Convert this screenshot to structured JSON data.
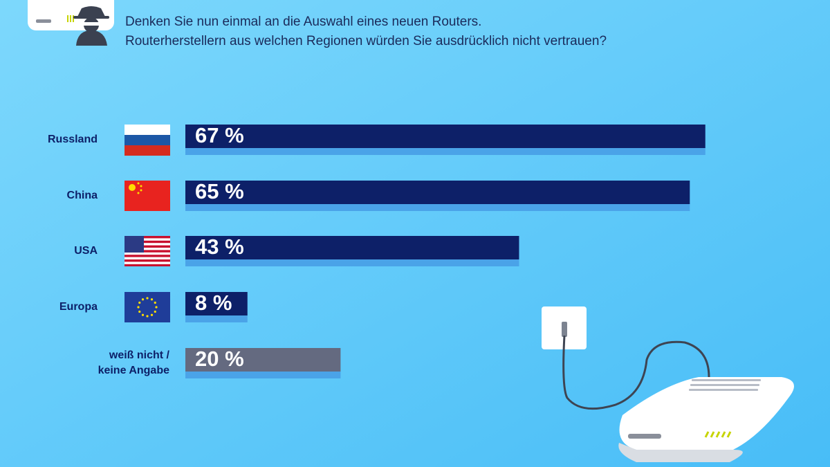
{
  "chart_data": {
    "type": "bar",
    "subtitle": [
      "Denken Sie nun einmal an die Auswahl eines neuen Routers.",
      "Routerherstellern aus welchen Regionen würden Sie ausdrücklich nicht vertrauen?"
    ],
    "categories": [
      "Russland",
      "China",
      "USA",
      "Europa",
      "weiß nicht / keine Angabe"
    ],
    "values": [
      67,
      65,
      43,
      8,
      20
    ],
    "value_labels": [
      "67 %",
      "65 %",
      "43 %",
      "8 %",
      "20 %"
    ],
    "colors": [
      "#0d2068",
      "#0d2068",
      "#0d2068",
      "#0d2068",
      "#646a80"
    ],
    "underline_color": "#4aa3e8"
  }
}
